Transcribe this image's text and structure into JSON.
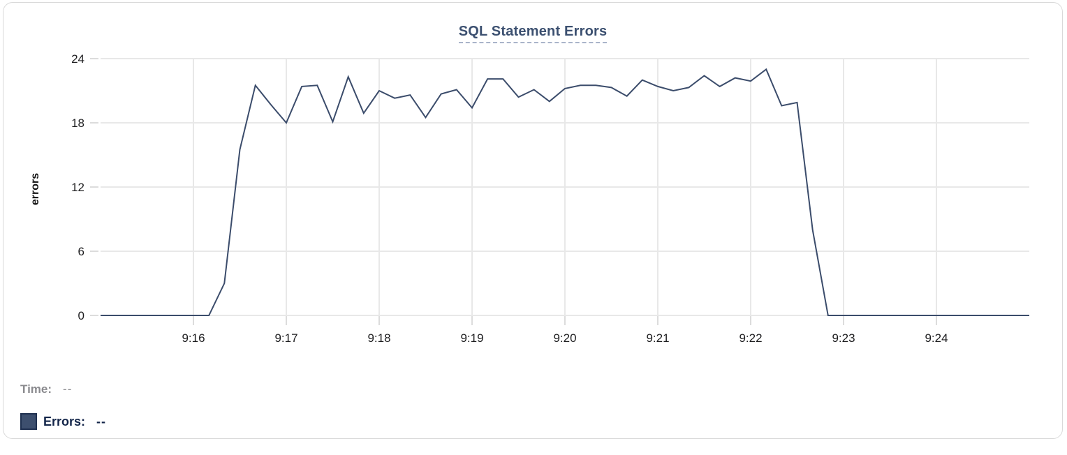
{
  "chart_data": {
    "type": "line",
    "title": "SQL Statement Errors",
    "xlabel": "",
    "ylabel": "errors",
    "ylim": [
      0,
      24
    ],
    "y_ticks": [
      0,
      6,
      12,
      18,
      24
    ],
    "x_tick_labels": [
      "9:16",
      "9:17",
      "9:18",
      "9:19",
      "9:20",
      "9:21",
      "9:22",
      "9:23",
      "9:24"
    ],
    "x_tick_seconds": [
      60,
      120,
      180,
      240,
      300,
      360,
      420,
      480,
      540
    ],
    "x_start": "9:15:00",
    "x_end": "9:25:00",
    "interval_seconds": 10,
    "grid": true,
    "legend_position": "bottom-left",
    "series": [
      {
        "name": "Errors",
        "color": "#3b4c6b",
        "values": [
          0,
          0,
          0,
          0,
          0,
          0,
          0,
          0,
          3,
          15.5,
          21.5,
          19.7,
          18,
          21.4,
          21.5,
          18.1,
          22.3,
          18.9,
          21,
          20.3,
          20.6,
          18.5,
          20.7,
          21.1,
          19.4,
          22.1,
          22.1,
          20.4,
          21.1,
          20,
          21.2,
          21.5,
          21.5,
          21.3,
          20.5,
          22,
          21.4,
          21,
          21.3,
          22.4,
          21.4,
          22.2,
          21.9,
          23,
          19.6,
          19.9,
          8,
          0,
          0,
          0,
          0,
          0,
          0,
          0,
          0,
          0,
          0,
          0,
          0,
          0,
          0
        ]
      }
    ]
  },
  "legend": {
    "time_label": "Time:",
    "time_value": "--",
    "errors_label": "Errors:",
    "errors_value": "--",
    "errors_swatch_color": "#3d4f6e"
  },
  "colors": {
    "title": "#3c5070",
    "title_underline": "#a9b4c9",
    "grid": "#e8e8e8",
    "tick_mark": "#dcdcdc",
    "axis_text": "#1d1d1f",
    "line": "#3b4c6b"
  }
}
